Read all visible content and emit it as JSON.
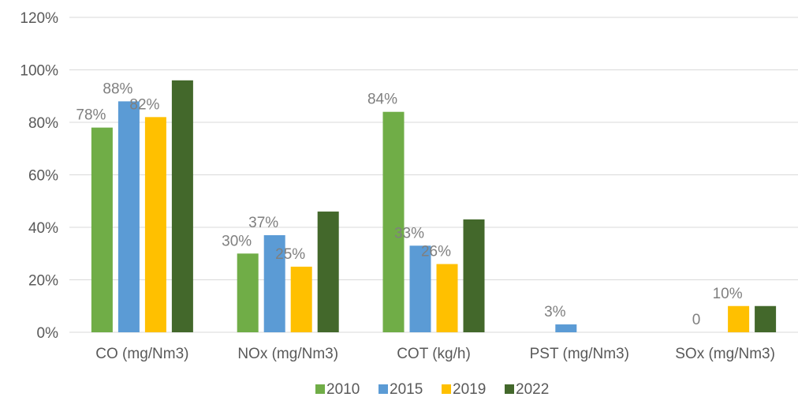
{
  "chart_data": {
    "type": "bar",
    "categories": [
      "CO (mg/Nm3)",
      "NOx (mg/Nm3)",
      "COT (kg/h)",
      "PST (mg/Nm3)",
      "SOx (mg/Nm3)"
    ],
    "series": [
      {
        "name": "2010",
        "color": "#70ad47",
        "values": [
          78,
          30,
          84,
          null,
          null
        ],
        "labels": [
          "78%",
          "30%",
          "84%",
          "",
          ""
        ]
      },
      {
        "name": "2015",
        "color": "#5b9bd5",
        "values": [
          88,
          37,
          33,
          3,
          0
        ],
        "labels": [
          "88%",
          "37%",
          "33%",
          "3%",
          "0"
        ]
      },
      {
        "name": "2019",
        "color": "#ffc000",
        "values": [
          82,
          25,
          26,
          null,
          10
        ],
        "labels": [
          "82%",
          "25%",
          "26%",
          "",
          "10%"
        ]
      },
      {
        "name": "2022",
        "color": "#43682b",
        "values": [
          96,
          46,
          43,
          null,
          10
        ],
        "labels": [
          "",
          "",
          "",
          "",
          ""
        ]
      }
    ],
    "y_ticks": [
      "0%",
      "20%",
      "40%",
      "60%",
      "80%",
      "100%",
      "120%"
    ],
    "ylim": [
      0,
      120
    ],
    "grid": true,
    "legend_position": "bottom"
  }
}
